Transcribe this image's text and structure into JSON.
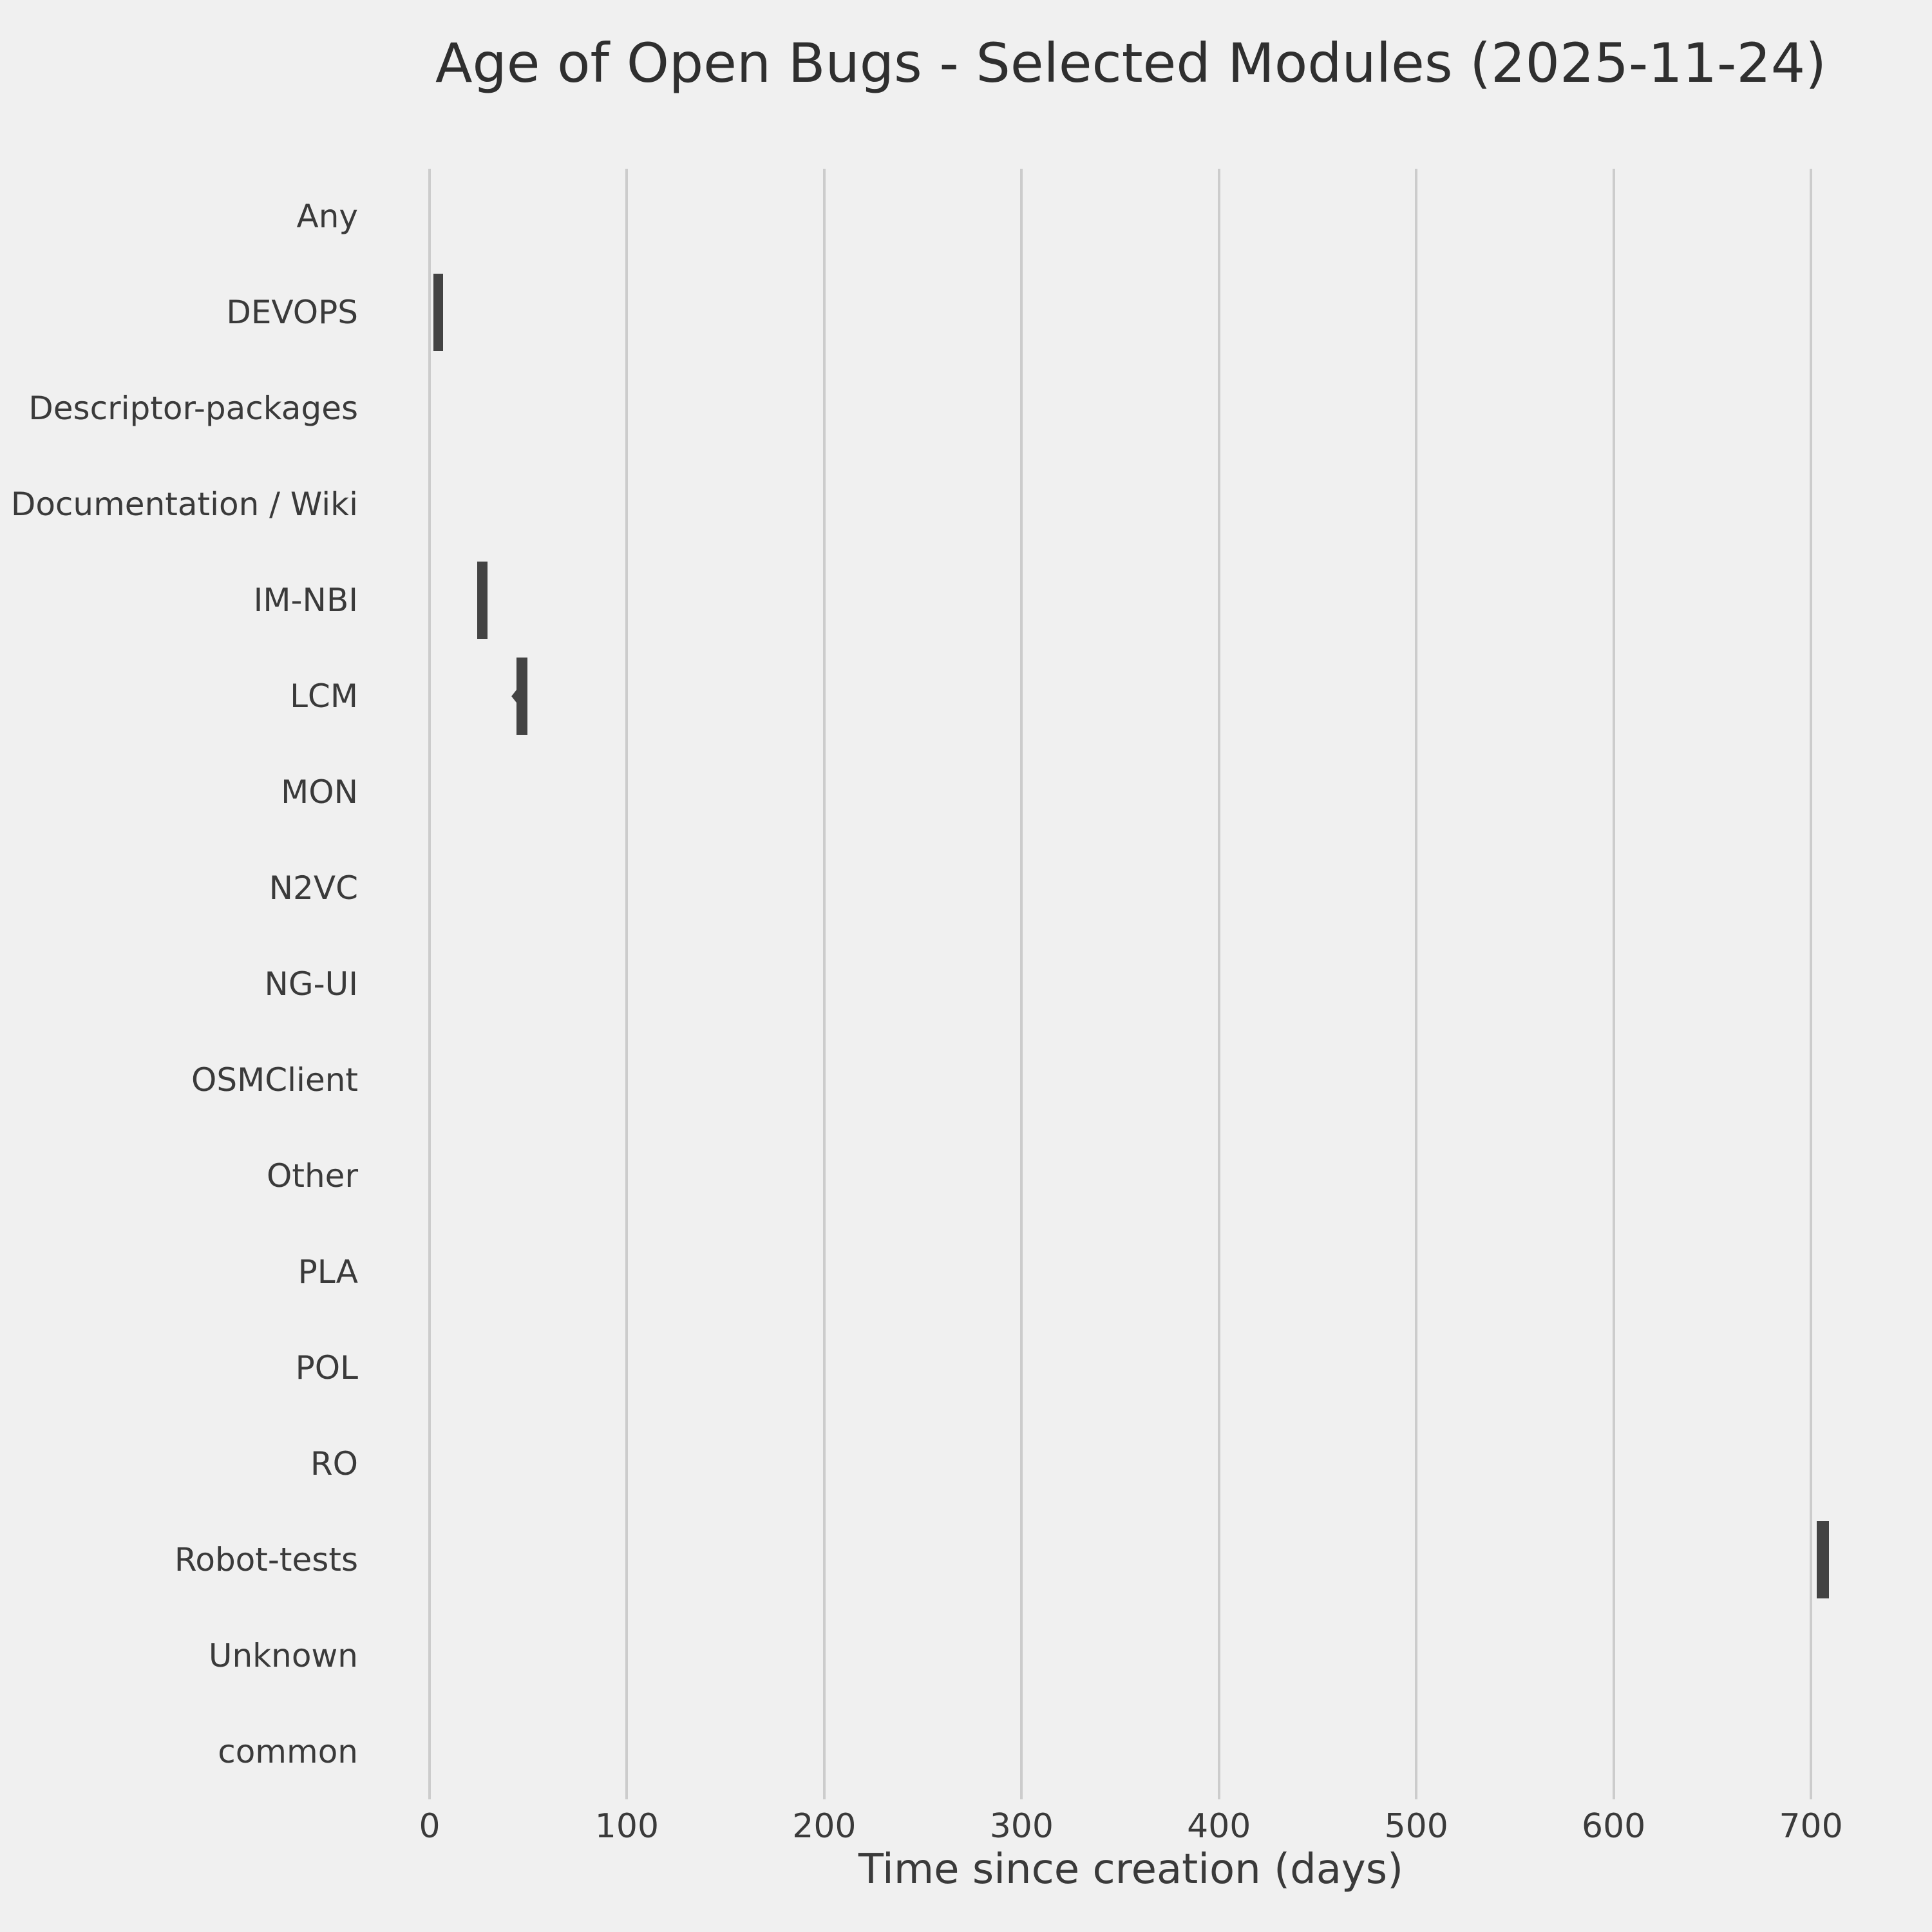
{
  "chart_data": {
    "type": "violin",
    "orientation": "horizontal",
    "title": "Age of Open Bugs - Selected Modules (2025-11-24)",
    "xlabel": "Time since creation (days)",
    "ylabel": "",
    "x_ticks": [
      0,
      100,
      200,
      300,
      400,
      500,
      600,
      700
    ],
    "xlim": [
      -35,
      745
    ],
    "grid": "vertical-only",
    "legend": null,
    "categories": [
      "Any",
      "DEVOPS",
      "Descriptor-packages",
      "Documentation / Wiki",
      "IM-NBI",
      "LCM",
      "MON",
      "N2VC",
      "NG-UI",
      "OSMClient",
      "Other",
      "PLA",
      "POL",
      "RO",
      "Robot-tests",
      "Unknown",
      "common"
    ],
    "series": [
      {
        "module": "Any",
        "age_range_days": null
      },
      {
        "module": "DEVOPS",
        "age_range_days": [
          2,
          7
        ]
      },
      {
        "module": "Descriptor-packages",
        "age_range_days": null
      },
      {
        "module": "Documentation / Wiki",
        "age_range_days": null
      },
      {
        "module": "IM-NBI",
        "age_range_days": [
          24,
          29.5
        ]
      },
      {
        "module": "LCM",
        "age_range_days": [
          44,
          49.5
        ],
        "tail_min_days": 41.5
      },
      {
        "module": "MON",
        "age_range_days": null
      },
      {
        "module": "N2VC",
        "age_range_days": null
      },
      {
        "module": "NG-UI",
        "age_range_days": null
      },
      {
        "module": "OSMClient",
        "age_range_days": null
      },
      {
        "module": "Other",
        "age_range_days": null
      },
      {
        "module": "PLA",
        "age_range_days": null
      },
      {
        "module": "POL",
        "age_range_days": null
      },
      {
        "module": "RO",
        "age_range_days": null
      },
      {
        "module": "Robot-tests",
        "age_range_days": [
          703,
          709
        ]
      },
      {
        "module": "Unknown",
        "age_range_days": null
      },
      {
        "module": "common",
        "age_range_days": null
      }
    ],
    "colors": {
      "violin_fill": "#434343",
      "grid": "#cccccc",
      "background": "#f0f0f0",
      "text": "#3a3a3a",
      "title_text": "#2f2f2f"
    }
  }
}
